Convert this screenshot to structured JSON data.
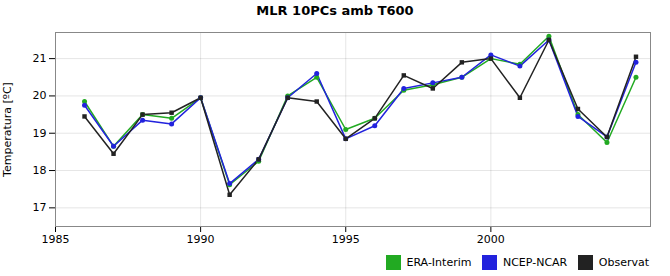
{
  "chart_data": {
    "type": "line",
    "title": "MLR 10PCs amb T600",
    "ylabel": "Temperatura [ºC]",
    "x": [
      1986,
      1987,
      1988,
      1989,
      1990,
      1991,
      1992,
      1993,
      1994,
      1995,
      1996,
      1997,
      1998,
      1999,
      2000,
      2001,
      2002,
      2003,
      2004,
      2005
    ],
    "series": [
      {
        "name": "ERA-Interim",
        "color": "#22aa22",
        "marker": "circle",
        "values": [
          19.85,
          18.65,
          19.5,
          19.4,
          19.95,
          17.62,
          18.25,
          20.0,
          20.5,
          19.1,
          19.4,
          20.15,
          20.3,
          20.5,
          21.0,
          20.85,
          21.6,
          19.5,
          18.75,
          20.5
        ]
      },
      {
        "name": "NCEP-NCAR",
        "color": "#2222dd",
        "marker": "circle",
        "values": [
          19.75,
          18.65,
          19.35,
          19.25,
          19.95,
          17.65,
          18.3,
          19.95,
          20.6,
          18.85,
          19.2,
          20.2,
          20.35,
          20.5,
          21.1,
          20.8,
          21.5,
          19.45,
          18.9,
          20.9
        ]
      },
      {
        "name": "Observat",
        "color": "#222222",
        "marker": "square",
        "values": [
          19.45,
          18.45,
          19.5,
          19.55,
          19.95,
          17.35,
          18.3,
          19.95,
          19.85,
          18.85,
          19.4,
          20.55,
          20.2,
          20.9,
          21.0,
          19.95,
          21.5,
          19.65,
          18.9,
          21.05
        ]
      }
    ],
    "xlim": [
      1985,
      2005.5
    ],
    "ylim": [
      16.5,
      21.7
    ],
    "xticks": [
      1985,
      1990,
      1995,
      2000
    ],
    "yticks": [
      17,
      18,
      19,
      20,
      21
    ],
    "grid": true,
    "legend": "lower right"
  }
}
